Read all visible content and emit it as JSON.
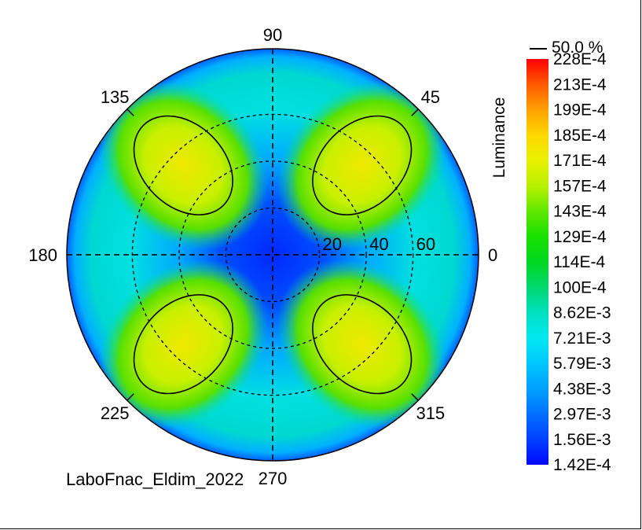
{
  "chart_data": {
    "type": "heatmap",
    "subtype": "polar-conoscopic",
    "title": "",
    "footer_label": "LaboFnac_Eldim_2022",
    "angle_labels": [
      "90",
      "45",
      "135",
      "180",
      "0",
      "225",
      "315",
      "270"
    ],
    "angle_values_deg": [
      90,
      45,
      135,
      180,
      0,
      225,
      315,
      270
    ],
    "radial_ticks": [
      {
        "value": 20,
        "label": "20"
      },
      {
        "value": 40,
        "label": "40"
      },
      {
        "value": 60,
        "label": "60"
      }
    ],
    "radial_range": [
      0,
      88
    ],
    "grid": true,
    "colorbar": {
      "title": "Luminance",
      "contour_label": "50.0 %",
      "tick_labels": [
        "228E-4",
        "213E-4",
        "199E-4",
        "185E-4",
        "171E-4",
        "157E-4",
        "143E-4",
        "129E-4",
        "114E-4",
        "100E-4",
        "8.62E-3",
        "7.21E-3",
        "5.79E-3",
        "4.38E-3",
        "2.97E-3",
        "1.56E-3",
        "1.42E-4"
      ],
      "colors_top_to_bottom": [
        "#ff0000",
        "#ff5a00",
        "#ffa000",
        "#ffd800",
        "#e8f000",
        "#b8f000",
        "#60e800",
        "#18e000",
        "#00d820",
        "#00d870",
        "#00e0c0",
        "#00e8f0",
        "#00c8ff",
        "#00a0ff",
        "#0070ff",
        "#0040ff",
        "#0008ff"
      ]
    },
    "lobes": [
      {
        "azimuth_deg": 45,
        "center_polar_deg": 54,
        "peak_value": "171E-4"
      },
      {
        "azimuth_deg": 135,
        "center_polar_deg": 54,
        "peak_value": "171E-4"
      },
      {
        "azimuth_deg": 225,
        "center_polar_deg": 54,
        "peak_value": "157E-4"
      },
      {
        "azimuth_deg": 315,
        "center_polar_deg": 54,
        "peak_value": "171E-4"
      }
    ],
    "center_value": "1.42E-4"
  }
}
